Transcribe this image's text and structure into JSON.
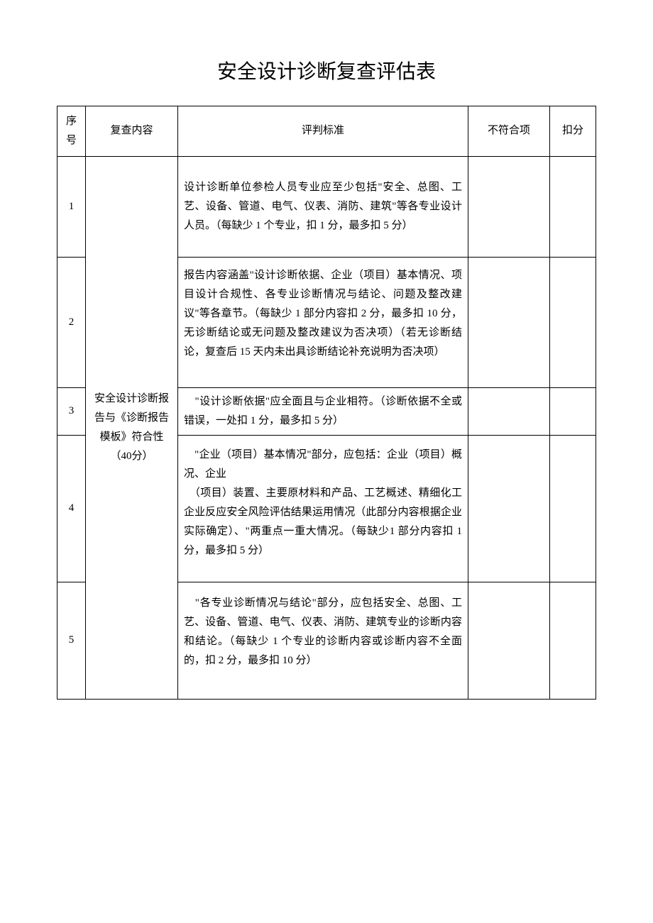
{
  "title": "安全设计诊断复查评估表",
  "headers": {
    "seq": "序号",
    "content": "复查内容",
    "criteria": "评判标准",
    "nonconform": "不符合项",
    "deduct": "扣分"
  },
  "contentCell": "安全设计诊断报告与《诊断报告模板》符合性（40分）",
  "rows": [
    {
      "seq": "1",
      "criteria": "设计诊断单位参检人员专业应至少包括\"安全、总图、工艺、设备、管道、电气、仪表、消防、建筑\"等各专业设计人员。（每缺少 1 个专业，扣 1 分，最多扣 5 分）"
    },
    {
      "seq": "2",
      "criteria": "报告内容涵盖\"设计诊断依据、企业（项目）基本情况、项目设计合规性、各专业诊断情况与结论、问题及整改建议\"等各章节。（每缺少 1 部分内容扣 2 分，最多扣 10 分，无诊断结论或无问题及整改建议为否决项）（若无诊断结论，复查后 15 天内未出具诊断结论补充说明为否决项）"
    },
    {
      "seq": "3",
      "criteria": "　\"设计诊断依据\"应全面且与企业相符。（诊断依据不全或错误，一处扣 1 分，最多扣 5 分）"
    },
    {
      "seq": "4",
      "criteria": "　\"企业（项目）基本情况\"部分，应包括：企业（项目）概况、企业\n　（项目）装置、主要原材料和产品、工艺概述、精细化工企业反应安全风险评估结果运用情况（此部分内容根据企业实际确定）、\"两重点一重大情况。（每缺少1 部分内容扣 1 分，最多扣 5 分）"
    },
    {
      "seq": "5",
      "criteria": "　\"各专业诊断情况与结论\"部分，应包括安全、总图、工艺、设备、管道、电气、仪表、消防、建筑专业的诊断内容和结论。（每缺少 1 个专业的诊断内容或诊断内容不全面的，扣 2 分，最多扣 10 分）"
    }
  ]
}
